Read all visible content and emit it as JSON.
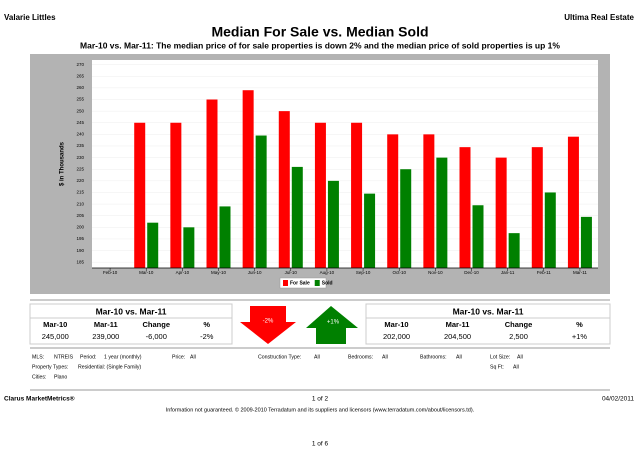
{
  "header": {
    "left": "Valarie Littles",
    "right": "Ultima Real Estate"
  },
  "chart_data": {
    "type": "bar",
    "title": "Median For Sale vs. Median Sold",
    "subtitle": "Mar-10 vs. Mar-11:  The median price of for sale properties is down 2% and the median price of sold properties is up 1%",
    "y_label": "$ in Thousands",
    "categories": [
      "Feb-10",
      "Mar-10",
      "Apr-10",
      "May-10",
      "Jun-10",
      "Jul-10",
      "Aug-10",
      "Sep-10",
      "Oct-10",
      "Nov-10",
      "Dec-10",
      "Jan-11",
      "Feb-11",
      "Mar-11"
    ],
    "series": [
      {
        "name": "For Sale",
        "color": "#ff0000",
        "values": [
          null,
          245,
          245,
          255,
          259,
          250,
          245,
          245,
          240,
          240,
          234.5,
          230,
          234.5,
          239
        ]
      },
      {
        "name": "Sold",
        "color": "#008000",
        "values": [
          null,
          202,
          200,
          209,
          239.5,
          226,
          220,
          214.5,
          225,
          230,
          209.5,
          197.5,
          215,
          204.5
        ]
      }
    ],
    "ylim": [
      182.5,
      272
    ],
    "yticks": [
      185,
      190,
      195,
      200,
      205,
      210,
      215,
      220,
      225,
      230,
      235,
      240,
      245,
      250,
      255,
      260,
      265,
      270
    ],
    "grid": true,
    "legend": "bottom"
  },
  "summary": {
    "left": {
      "title": "Mar-10 vs. Mar-11",
      "columns": [
        "Mar-10",
        "Mar-11",
        "Change",
        "%"
      ],
      "values": [
        "245,000",
        "239,000",
        "-6,000",
        "-2%"
      ]
    },
    "down_arrow": "-2%",
    "up_arrow": "+1%",
    "right": {
      "title": "Mar-10 vs. Mar-11",
      "columns": [
        "Mar-10",
        "Mar-11",
        "Change",
        "%"
      ],
      "values": [
        "202,000",
        "204,500",
        "2,500",
        "+1%"
      ]
    }
  },
  "criteria": [
    {
      "label": "MLS:",
      "value": "NTREIS"
    },
    {
      "label": "Period:",
      "value": "1 year (monthly)"
    },
    {
      "label": "Price:",
      "value": "All"
    },
    {
      "label": "Construction Type:",
      "value": "All"
    },
    {
      "label": "Bedrooms:",
      "value": "All"
    },
    {
      "label": "Bathrooms:",
      "value": "All"
    },
    {
      "label": "Lot Size:",
      "value": "All"
    },
    {
      "label": "Property Types:",
      "value": "Residential: (Single Family)"
    },
    {
      "label": "Sq Ft:",
      "value": "All"
    },
    {
      "label": "Cities:",
      "value": "Plano"
    }
  ],
  "footer": {
    "left": "Clarus MarketMetrics®",
    "center": "1 of 2",
    "right": "04/02/2011",
    "disclaimer": "Information not guaranteed.  © 2009-2010 Terradatum and its suppliers and licensors (www.terradatum.com/about/licensors.td).",
    "page": "1 of 6"
  }
}
